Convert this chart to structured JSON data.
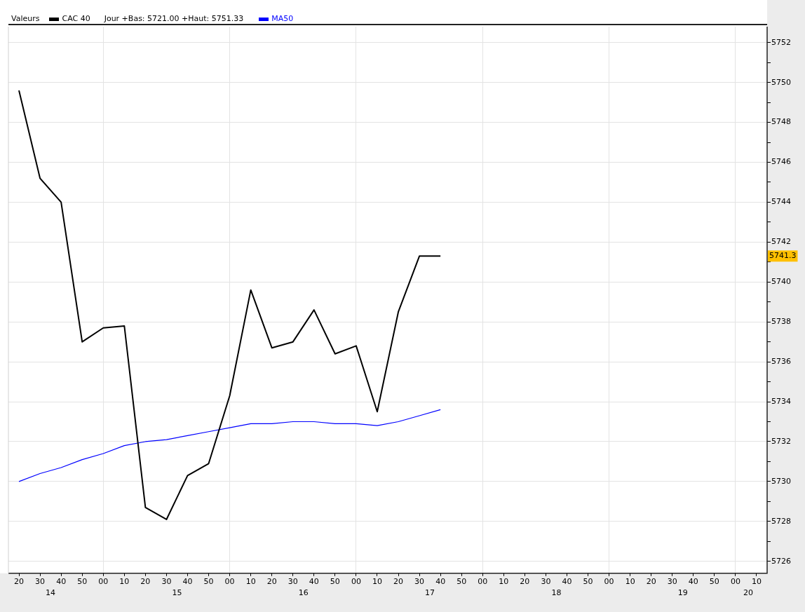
{
  "chart_data": {
    "type": "line",
    "legend_title": "Valeurs",
    "legend": "top left",
    "grid": true,
    "marker": "none",
    "line_style": "solid",
    "annotations": [
      "Jour +Bas: 5721.00 +Haut: 5751.33",
      {
        "text": "5741.3",
        "y": 5741.3
      },
      "14",
      "15",
      "16",
      "17",
      "18",
      "19",
      "20"
    ],
    "categories": [
      "20",
      "30",
      "40",
      "50",
      "00",
      "10",
      "20",
      "30",
      "40",
      "50",
      "00",
      "10",
      "20",
      "30",
      "40",
      "50",
      "00",
      "10",
      "20",
      "30",
      "40",
      "50",
      "00",
      "10",
      "20",
      "30",
      "40",
      "50",
      "00",
      "10",
      "20",
      "30",
      "40",
      "50",
      "00",
      "10"
    ],
    "series": [
      {
        "name": "CAC 40",
        "color": "#000000",
        "values": [
          5749.6,
          5745.2,
          5744.0,
          5737.0,
          5737.7,
          5737.8,
          5728.7,
          5728.1,
          5730.3,
          5730.9,
          5734.3,
          5739.6,
          5736.7,
          5737.0,
          5738.6,
          5736.4,
          5736.8,
          5733.5,
          5738.5,
          5741.3,
          5741.3,
          null,
          null,
          null,
          null,
          null,
          null,
          null,
          null,
          null,
          null,
          null,
          null,
          null,
          null,
          null
        ]
      },
      {
        "name": "MA50",
        "color": "#0000ff",
        "values": [
          5730.0,
          5730.4,
          5730.7,
          5731.1,
          5731.4,
          5731.8,
          5732.0,
          5732.1,
          5732.3,
          5732.5,
          5732.7,
          5732.9,
          5732.9,
          5733.0,
          5733.0,
          5732.9,
          5732.9,
          5732.8,
          5733.0,
          5733.3,
          5733.6,
          null,
          null,
          null,
          null,
          null,
          null,
          null,
          null,
          null,
          null,
          null,
          null,
          null,
          null,
          null
        ]
      }
    ],
    "ylim": [
      5725.4,
      5752.8
    ],
    "yticks": [
      5726,
      {
        "value": 5727,
        "label": null
      },
      5728,
      {
        "value": 5729,
        "label": null
      },
      5730,
      {
        "value": 5731,
        "label": null
      },
      5732,
      {
        "value": 5733,
        "label": null
      },
      5734,
      {
        "value": 5735,
        "label": null
      },
      5736,
      {
        "value": 5737,
        "label": null
      },
      5738,
      {
        "value": 5739,
        "label": null
      },
      5740,
      {
        "value": 5741,
        "label": null
      },
      5742,
      {
        "value": 5743,
        "label": null
      },
      5744,
      {
        "value": 5745,
        "label": null
      },
      5746,
      {
        "value": 5747,
        "label": null
      },
      5748,
      {
        "value": 5749,
        "label": null
      },
      5750,
      {
        "value": 5751,
        "label": null
      },
      5752
    ]
  }
}
